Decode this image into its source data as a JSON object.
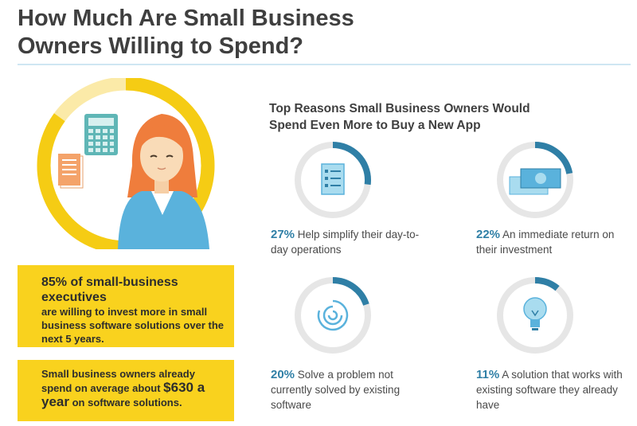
{
  "title": {
    "line1": "How Much Are Small Business",
    "line2": "Owners Willing to Spend?"
  },
  "box1": {
    "lead": "85% of small-business executives",
    "rest": "are willing to invest more in small business software solutions over the next 5 years."
  },
  "box2": {
    "text_before": "Small business owners already spend on average about",
    "amount": "$630 a year",
    "text_after": "on software solutions."
  },
  "right_title": {
    "line1": "Top Reasons Small Business Owners Would",
    "line2": "Spend Even More to Buy a New App"
  },
  "reasons": [
    {
      "percent_label": "27%",
      "percent": 27,
      "text": "Help simplify their day-to-day operations",
      "icon": "checklist-icon"
    },
    {
      "percent_label": "22%",
      "percent": 22,
      "text": "An immediate return on their investment",
      "icon": "money-icon"
    },
    {
      "percent_label": "20%",
      "percent": 20,
      "text": "Solve a problem not currently solved by existing software",
      "icon": "maze-icon"
    },
    {
      "percent_label": "11%",
      "percent": 11,
      "text": "A solution that works with existing software they already have",
      "icon": "lightbulb-icon"
    }
  ],
  "hero_ring": {
    "percent": 85
  },
  "colors": {
    "accent_yellow": "#f9d21e",
    "ring_blue": "#2f7fa6",
    "ring_gray": "#e6e6e6",
    "title_text": "#3f3f3f"
  }
}
